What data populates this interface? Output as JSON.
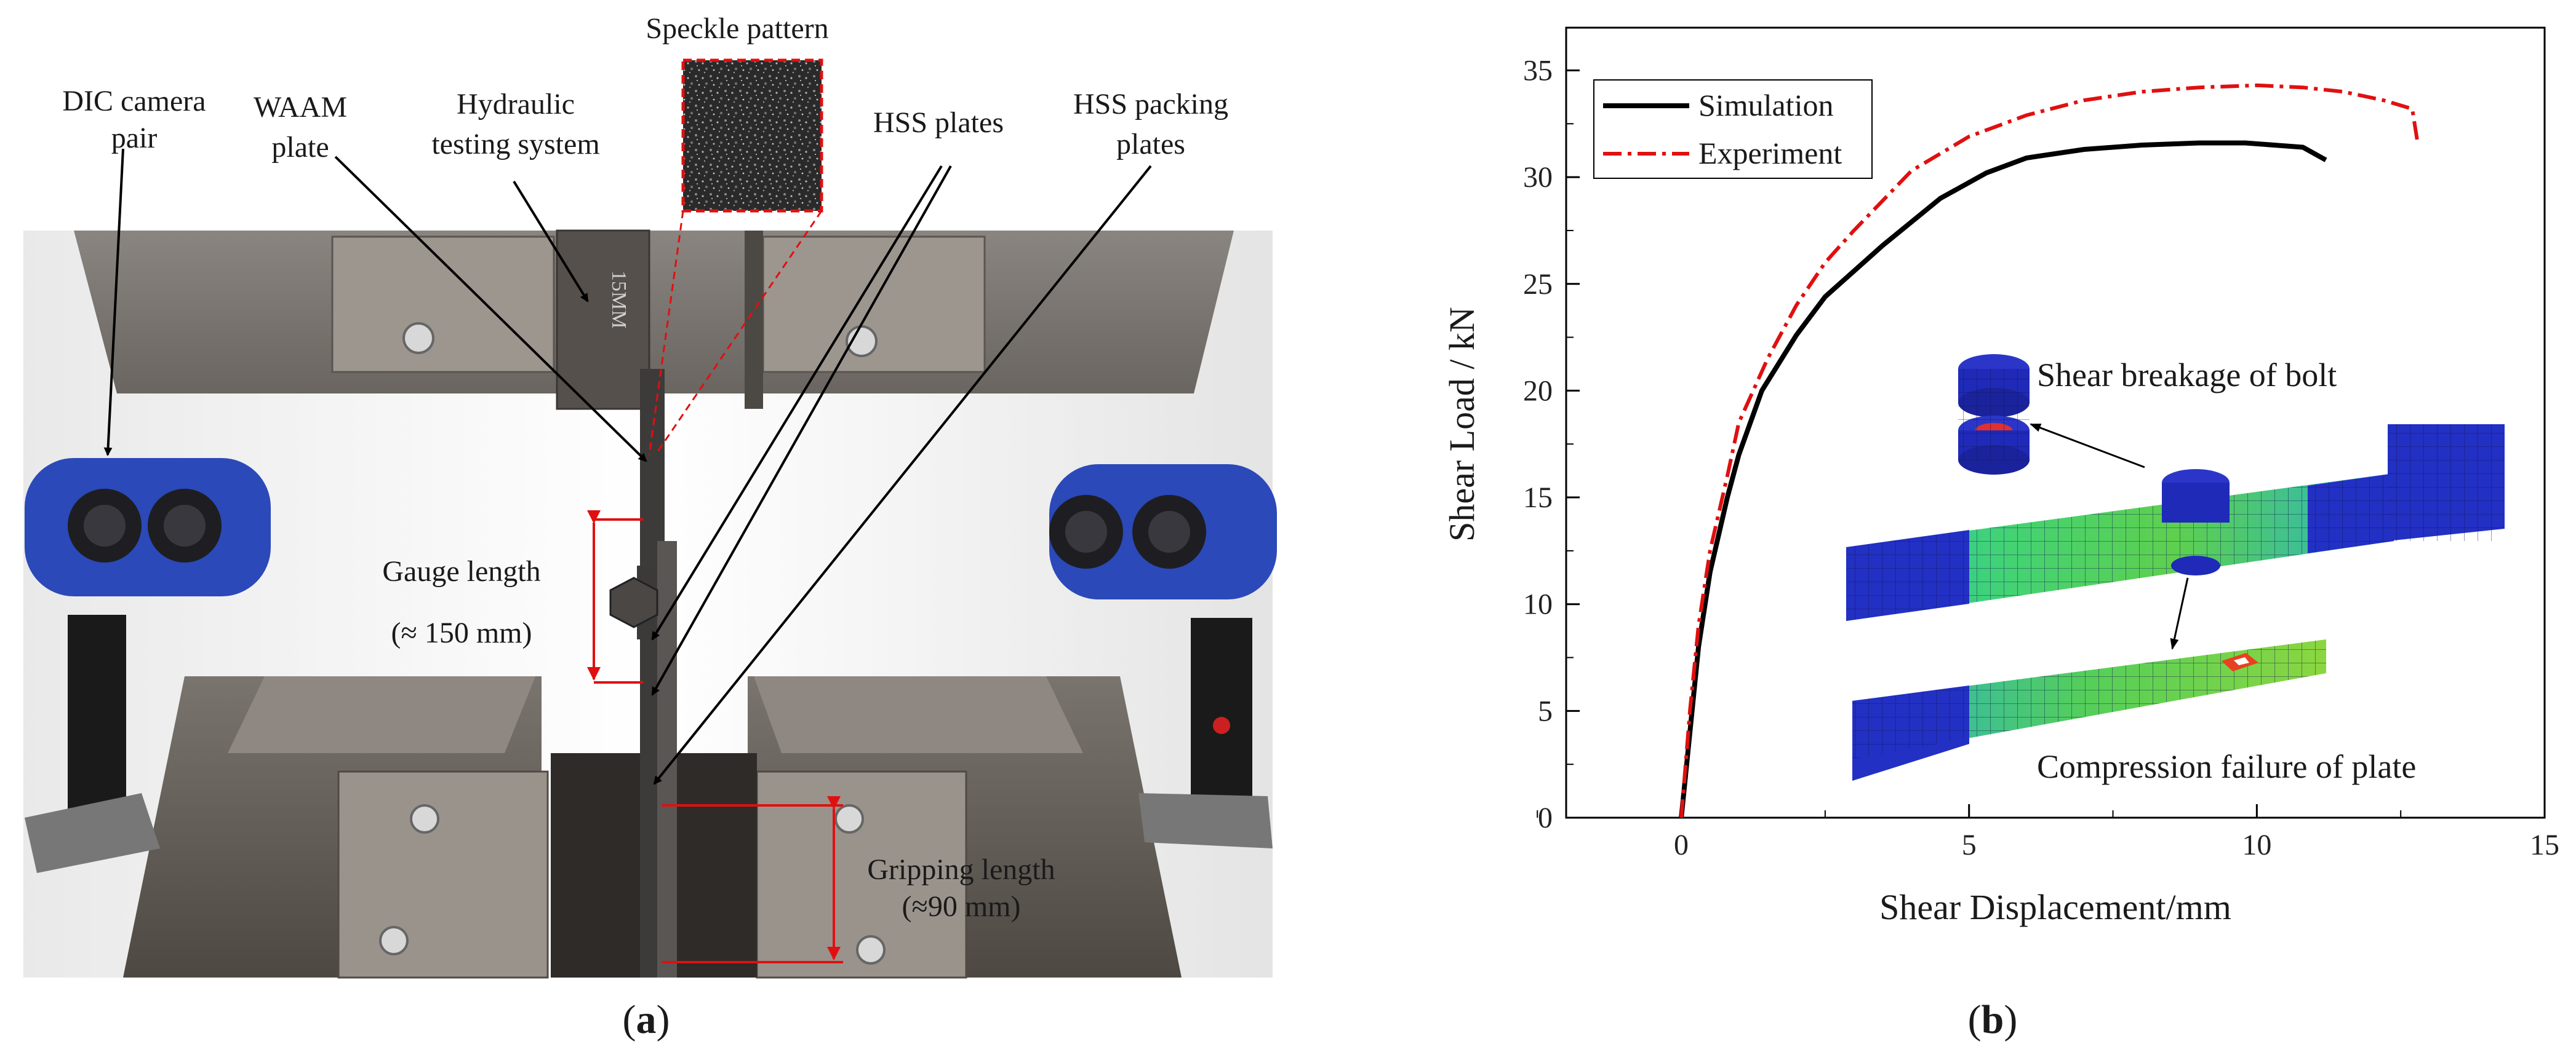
{
  "panel_a": {
    "caption_letter": "a",
    "labels": {
      "speckle": "Speckle pattern",
      "dic_l1": "DIC camera",
      "dic_l2": "pair",
      "waam_l1": "WAAM",
      "waam_l2": "plate",
      "hyd_l1": "Hydraulic",
      "hyd_l2": "testing system",
      "hss_plates": "HSS plates",
      "pack_l1": "HSS packing",
      "pack_l2": "plates",
      "gauge_l1": "Gauge length",
      "gauge_l2": "(≈ 150 mm)",
      "grip_l1": "Gripping length",
      "grip_l2": "(≈90 mm)",
      "machine_marking": "15MM"
    },
    "colors": {
      "dimension_red": "#e01010",
      "camera_blue": "#2b49b8"
    }
  },
  "panel_b": {
    "caption_letter": "b",
    "annotations": {
      "bolt": "Shear breakage of bolt",
      "plate": "Compression failure of plate"
    }
  },
  "chart_data": {
    "type": "line",
    "title": "",
    "xlabel": "Shear Displacement/mm",
    "ylabel": "Shear Load / kN",
    "xlim": [
      -2,
      15
    ],
    "ylim": [
      0,
      37
    ],
    "xticks": [
      "0",
      "5",
      "10",
      "15"
    ],
    "yticks": [
      "0",
      "5",
      "10",
      "15",
      "20",
      "25",
      "30",
      "35"
    ],
    "legend_position": "top-left",
    "series": [
      {
        "name": "Simulation",
        "color": "#000000",
        "style": "solid",
        "x": [
          0,
          0.15,
          0.3,
          0.5,
          0.8,
          1.0,
          1.4,
          2.0,
          2.5,
          3.5,
          4.5,
          5.3,
          6.0,
          7.0,
          8.0,
          9.0,
          9.8,
          10.3,
          10.8,
          11.2
        ],
        "y": [
          0,
          4,
          8,
          11.5,
          15,
          17,
          20,
          22.6,
          24.4,
          26.8,
          29,
          30.2,
          30.9,
          31.3,
          31.5,
          31.6,
          31.6,
          31.5,
          31.4,
          30.8
        ]
      },
      {
        "name": "Experiment",
        "color": "#e01010",
        "style": "dashdot",
        "x": [
          0,
          0.15,
          0.3,
          0.5,
          0.8,
          1.0,
          1.5,
          2.0,
          2.5,
          3.0,
          4.0,
          5.0,
          6.0,
          7.0,
          8.0,
          9.0,
          10.0,
          10.8,
          11.5,
          12.2,
          12.7,
          12.8
        ],
        "y": [
          0,
          5,
          9,
          12.5,
          16,
          18.5,
          21.5,
          24,
          26,
          27.5,
          30.3,
          31.9,
          32.9,
          33.6,
          34.0,
          34.2,
          34.3,
          34.2,
          34.0,
          33.6,
          33.2,
          31.5
        ]
      }
    ]
  }
}
